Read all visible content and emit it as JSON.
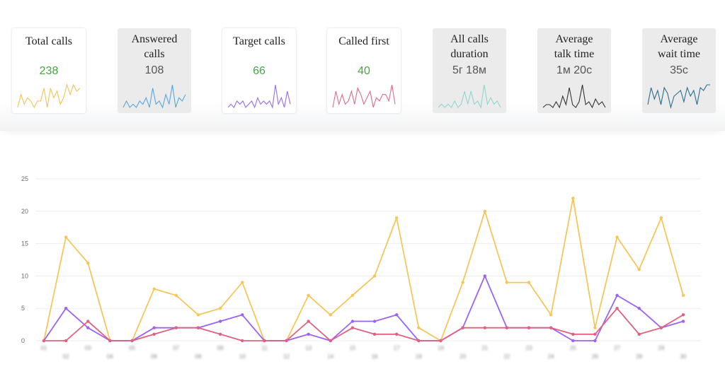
{
  "cards": [
    {
      "title": "Total calls",
      "value": "238",
      "value_color": "#3fa83f",
      "bg": "white",
      "spark_color": "#f2c55a",
      "spark": [
        1,
        5,
        2,
        4,
        3,
        1,
        3,
        3,
        7,
        1,
        7,
        4,
        6,
        2,
        4,
        8,
        5,
        8,
        6,
        7
      ]
    },
    {
      "title": "Answered\ncalls",
      "value": "108",
      "value_color": "#555555",
      "bg": "grey",
      "spark_color": "#5aa6e0",
      "spark": [
        2,
        4,
        2,
        3,
        2,
        4,
        3,
        5,
        2,
        8,
        3,
        4,
        2,
        6,
        3,
        9,
        2,
        5,
        4,
        6
      ]
    },
    {
      "title": "Target calls",
      "value": "66",
      "value_color": "#3fa83f",
      "bg": "white",
      "spark_color": "#9a6cf0",
      "spark": [
        2,
        3,
        2,
        4,
        3,
        4,
        2,
        3,
        4,
        2,
        5,
        3,
        4,
        3,
        4,
        2,
        9,
        3,
        5,
        2,
        7,
        3
      ]
    },
    {
      "title": "Called first",
      "value": "40",
      "value_color": "#3fa83f",
      "bg": "white",
      "spark_color": "#e06a8c",
      "spark": [
        1,
        6,
        2,
        5,
        2,
        3,
        6,
        2,
        7,
        5,
        2,
        4,
        6,
        1,
        4,
        3,
        5,
        5,
        3,
        8,
        2
      ]
    },
    {
      "title": "All calls\nduration",
      "value": "5г 18м",
      "value_color": "#555555",
      "bg": "grey",
      "spark_color": "#8fd6cf",
      "spark": [
        1,
        2,
        1,
        2,
        1,
        3,
        1,
        2,
        6,
        2,
        6,
        2,
        3,
        1,
        8,
        2,
        4,
        2,
        3,
        1
      ]
    },
    {
      "title": "Average\ntalk time",
      "value": "1м 20с",
      "value_color": "#555555",
      "bg": "grey",
      "spark_color": "#333333",
      "spark": [
        1,
        2,
        2,
        1,
        3,
        1,
        5,
        2,
        8,
        2,
        1,
        3,
        9,
        2,
        3,
        1,
        4,
        2,
        3,
        1
      ]
    },
    {
      "title": "Average\nwait time",
      "value": "35с",
      "value_color": "#555555",
      "bg": "grey",
      "spark_color": "#2a6d8f",
      "spark": [
        2,
        8,
        4,
        7,
        2,
        8,
        6,
        1,
        5,
        6,
        7,
        3,
        8,
        5,
        7,
        2,
        8,
        7,
        9,
        9
      ]
    }
  ],
  "chart_data": {
    "type": "line",
    "title": "",
    "xlabel": "",
    "ylabel": "",
    "ylim": [
      0,
      25
    ],
    "yticks": [
      0,
      5,
      10,
      15,
      20,
      25
    ],
    "grid": true,
    "legend": "none",
    "x": [
      "01",
      "02",
      "03",
      "04",
      "05",
      "06",
      "07",
      "08",
      "09",
      "10",
      "11",
      "12",
      "13",
      "14",
      "15",
      "16",
      "17",
      "18",
      "19",
      "20",
      "21",
      "22",
      "23",
      "24",
      "25",
      "26",
      "27",
      "28",
      "29",
      "30"
    ],
    "series": [
      {
        "color": "#f5c75b",
        "values": [
          0,
          16,
          12,
          0,
          0,
          8,
          7,
          4,
          5,
          9,
          0,
          0,
          7,
          4,
          7,
          10,
          19,
          2,
          0,
          9,
          20,
          9,
          9,
          4,
          22,
          2,
          16,
          11,
          19,
          7
        ]
      },
      {
        "color": "#9b63f5",
        "values": [
          0,
          5,
          2,
          0,
          0,
          2,
          2,
          2,
          3,
          4,
          0,
          0,
          1,
          0,
          3,
          3,
          4,
          0,
          0,
          2,
          10,
          2,
          2,
          2,
          0,
          0,
          7,
          5,
          2,
          3
        ]
      },
      {
        "color": "#e2607f",
        "values": [
          0,
          0,
          3,
          0,
          0,
          1,
          2,
          2,
          1,
          0,
          0,
          0,
          3,
          0,
          2,
          1,
          1,
          0,
          0,
          2,
          2,
          2,
          2,
          2,
          1,
          1,
          5,
          1,
          2,
          4
        ]
      }
    ]
  }
}
